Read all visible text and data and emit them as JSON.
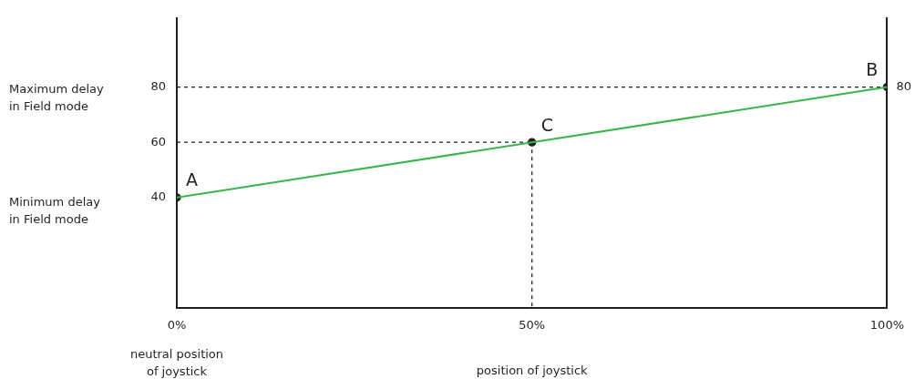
{
  "chart_data": {
    "type": "line",
    "xlabel": "position of joystick",
    "x": [
      0,
      50,
      100
    ],
    "series": [
      {
        "color": "#3ab54a",
        "values": [
          40,
          60,
          80
        ],
        "marker": "none",
        "line_style": "solid"
      },
      {
        "color": "#231f20",
        "x": [
          0,
          100
        ],
        "values": [
          80,
          80
        ],
        "marker": "none",
        "line_style": "dashed"
      },
      {
        "color": "#231f20",
        "x": [
          0,
          50
        ],
        "values": [
          60,
          60
        ],
        "marker": "none",
        "line_style": "dashed"
      },
      {
        "color": "#231f20",
        "x": [
          50,
          50
        ],
        "values": [
          60,
          0
        ],
        "marker": "none",
        "line_style": "dashed"
      },
      {
        "type": "scatter",
        "color": "#231f20",
        "x": [
          0,
          50,
          100
        ],
        "values": [
          40,
          60,
          80
        ],
        "marker": "circle"
      }
    ],
    "xlim": [
      0,
      100
    ],
    "xticks": [
      {
        "value": 0,
        "label": "0%"
      },
      {
        "value": 50,
        "label": "50%"
      },
      {
        "value": 100,
        "label": "100%"
      }
    ],
    "ylim": [
      0,
      105
    ],
    "yticks": [
      40,
      60,
      80
    ],
    "grid": false,
    "legend": false,
    "annotations": [
      {
        "text": "A",
        "x": 0,
        "y": 40
      },
      {
        "text": "C",
        "x": 50,
        "y": 60
      },
      {
        "text": "B",
        "x": 100,
        "y": 80
      },
      {
        "text": "80",
        "x": 100,
        "y": 80
      },
      "Maximum delay in Field mode",
      "Minimum delay in Field mode",
      "neutral position of joystick"
    ]
  }
}
